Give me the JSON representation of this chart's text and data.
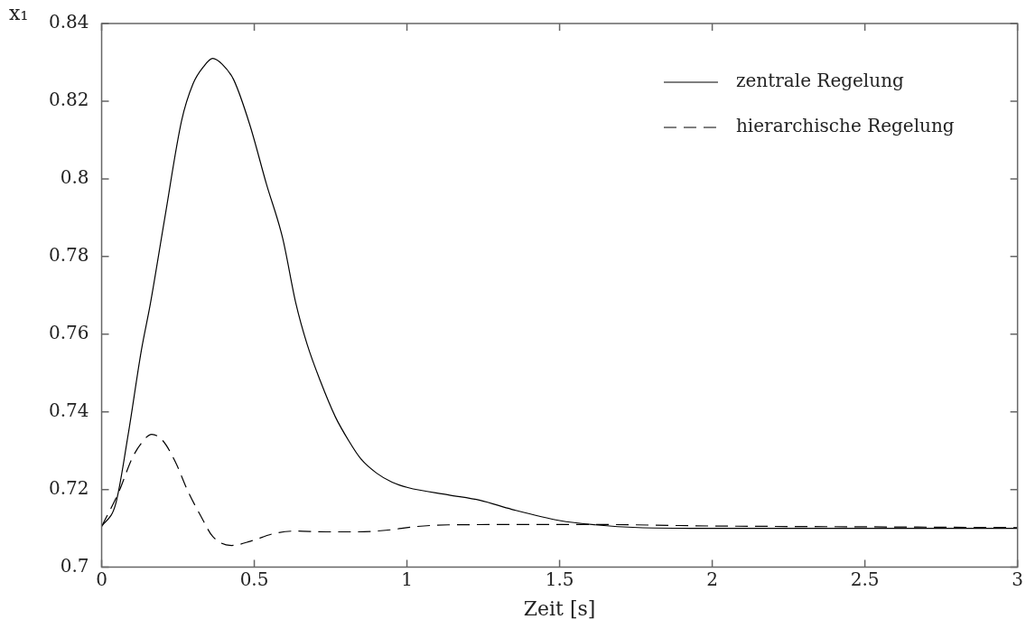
{
  "chart_data": {
    "type": "line",
    "xlabel": "Zeit [s]",
    "ylabel": "x₁",
    "xlim": [
      0,
      3
    ],
    "xticks": [
      0,
      0.5,
      1,
      1.5,
      2,
      2.5,
      3
    ],
    "ylim": [
      0.7,
      0.84
    ],
    "yticks": [
      0.7,
      0.72,
      0.74,
      0.76,
      0.78,
      0.8,
      0.82,
      0.84
    ],
    "grid": false,
    "legend": "top right",
    "marker": "none",
    "series": [
      {
        "name": "zentrale Regelung",
        "color": "#000000",
        "line_style": "solid",
        "x": [
          0,
          0.046,
          0.087,
          0.13,
          0.16,
          0.207,
          0.262,
          0.299,
          0.333,
          0.364,
          0.395,
          0.432,
          0.485,
          0.54,
          0.593,
          0.636,
          0.673,
          0.716,
          0.765,
          0.809,
          0.849,
          0.901,
          0.951,
          1.003,
          1.136,
          1.24,
          1.343,
          1.5,
          1.617,
          1.756,
          2.01,
          2.5,
          3
        ],
        "values": [
          0.7105,
          0.7163,
          0.7342,
          0.7558,
          0.768,
          0.79,
          0.815,
          0.8244,
          0.8288,
          0.831,
          0.8295,
          0.8256,
          0.814,
          0.7986,
          0.7847,
          0.768,
          0.7574,
          0.748,
          0.7388,
          0.7326,
          0.7279,
          0.7242,
          0.7219,
          0.7205,
          0.7186,
          0.7172,
          0.7149,
          0.712,
          0.7109,
          0.7102,
          0.71,
          0.71,
          0.71
        ]
      },
      {
        "name": "hierarchische Regelung",
        "color": "#000000",
        "line_style": "dashed",
        "x": [
          0,
          0.057,
          0.099,
          0.13,
          0.164,
          0.2,
          0.241,
          0.283,
          0.324,
          0.364,
          0.426,
          0.488,
          0.561,
          0.633,
          0.735,
          0.838,
          0.931,
          1.035,
          1.136,
          1.5,
          1.6,
          2,
          2.5,
          3
        ],
        "values": [
          0.7105,
          0.7195,
          0.7279,
          0.7319,
          0.7342,
          0.7326,
          0.7272,
          0.7195,
          0.7133,
          0.7079,
          0.7056,
          0.7067,
          0.7086,
          0.7093,
          0.7091,
          0.7091,
          0.7095,
          0.7105,
          0.7109,
          0.711,
          0.711,
          0.7106,
          0.7104,
          0.7102
        ]
      }
    ]
  }
}
